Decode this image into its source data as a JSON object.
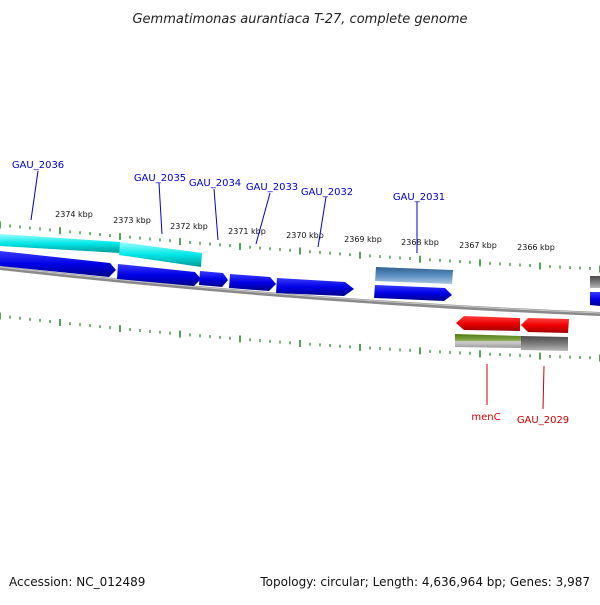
{
  "header": {
    "title": "Gemmatimonas aurantiaca T-27, complete genome"
  },
  "footer": {
    "accession": "Accession: NC_012489",
    "topology": "Topology: circular; Length: 4,636,964 bp; Genes: 3,987"
  },
  "colors": {
    "background": "#ffffff",
    "backbone": "#808080",
    "tick": "#2e8b2e",
    "forward_gene": "#0000ee",
    "forward_highlight": "#00e5e5",
    "forward_other": "#4a7fb5",
    "reverse_gene": "#ee0000",
    "reverse_other": "#6b8e23",
    "reverse_gray": "#707070",
    "label_forward": "#0000cc",
    "label_reverse": "#cc0000"
  },
  "scale": {
    "labels": [
      "2374 kbp",
      "2373 kbp",
      "2372 kbp",
      "2371 kbp",
      "2370 kbp",
      "2369 kbp",
      "2368 kbp",
      "2367 kbp",
      "2366 kbp"
    ]
  },
  "genes": {
    "forward_labels": [
      "GAU_2036",
      "GAU_2035",
      "GAU_2034",
      "GAU_2033",
      "GAU_2032",
      "GAU_2031"
    ],
    "reverse_labels": [
      "menC",
      "GAU_2029"
    ]
  }
}
